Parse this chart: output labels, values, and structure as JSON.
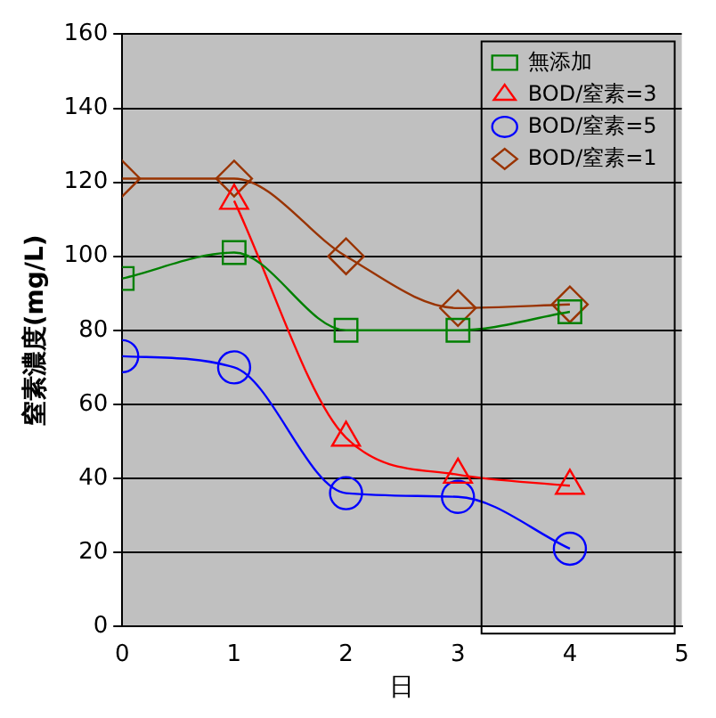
{
  "chart_data": {
    "type": "line",
    "xlabel": "日",
    "ylabel": "窒素濃度(mg/L)",
    "x": [
      0,
      1,
      2,
      3,
      4
    ],
    "xlim": [
      0,
      5
    ],
    "xticks": [
      0,
      1,
      2,
      3,
      4,
      5
    ],
    "ylim": [
      0,
      160
    ],
    "yticks": [
      0,
      20,
      40,
      60,
      80,
      100,
      120,
      140,
      160
    ],
    "grid": "y",
    "legend": "top right",
    "series": [
      {
        "name": "無添加",
        "color": "#008000",
        "marker": "square",
        "values": [
          94,
          101,
          80,
          80,
          85
        ]
      },
      {
        "name": "BOD/窒素=3",
        "color": "#ff0000",
        "marker": "triangle",
        "values": [
          null,
          115,
          51,
          41,
          38
        ]
      },
      {
        "name": "BOD/窒素=5",
        "color": "#0000ff",
        "marker": "circle",
        "values": [
          73,
          70,
          36,
          35,
          21
        ]
      },
      {
        "name": "BOD/窒素=1",
        "color": "#993300",
        "marker": "diamond",
        "values": [
          121,
          121,
          100,
          86,
          87
        ]
      }
    ]
  }
}
